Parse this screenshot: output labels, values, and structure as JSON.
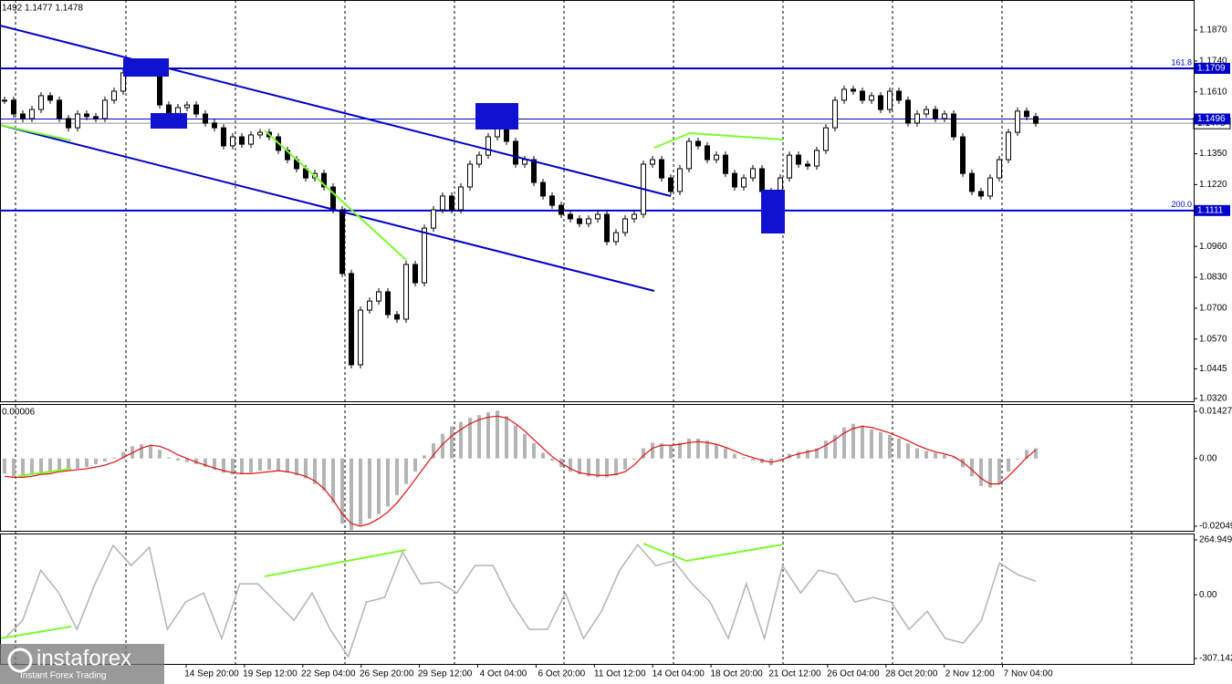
{
  "price": {
    "header": "1492 1.1477 1.1478",
    "ticks": [
      {
        "value": 1.187,
        "label": "1.1870"
      },
      {
        "value": 1.174,
        "label": "1.1740"
      },
      {
        "value": 1.161,
        "label": "1.1610"
      },
      {
        "value": 1.135,
        "label": "1.1350"
      },
      {
        "value": 1.122,
        "label": "1.1220"
      },
      {
        "value": 1.096,
        "label": "1.0960"
      },
      {
        "value": 1.083,
        "label": "1.0830"
      },
      {
        "value": 1.07,
        "label": "1.0700"
      },
      {
        "value": 1.057,
        "label": "1.0570"
      },
      {
        "value": 1.0445,
        "label": "1.0445"
      },
      {
        "value": 1.032,
        "label": "1.0320"
      }
    ],
    "levels": [
      {
        "value": 1.1709,
        "label": "1.1709",
        "fib": "161.8"
      },
      {
        "value": 1.1496,
        "label": "1.1496"
      },
      {
        "value": 1.1111,
        "label": "1.1111",
        "fib": "200.0"
      }
    ],
    "current": {
      "value": 1.1478,
      "label": "1.1478"
    },
    "closes": [
      1.1575,
      1.1517,
      1.1498,
      1.1536,
      1.1594,
      1.1575,
      1.1498,
      1.1459,
      1.1517,
      1.1506,
      1.1498,
      1.1575,
      1.1613,
      1.169,
      1.172,
      1.1697,
      1.1709,
      1.1555,
      1.1517,
      1.1544,
      1.1555,
      1.1517,
      1.1479,
      1.1459,
      1.1383,
      1.1421,
      1.139,
      1.1429,
      1.144,
      1.1421,
      1.1364,
      1.1325,
      1.1287,
      1.1248,
      1.1267,
      1.121,
      1.1114,
      1.0846,
      1.0462,
      1.0692,
      1.073,
      1.0769,
      1.0673,
      1.0654,
      1.0884,
      1.0807,
      1.1037,
      1.1114,
      1.1172,
      1.1114,
      1.121,
      1.1306,
      1.1344,
      1.1421,
      1.1459,
      1.1402,
      1.1306,
      1.1325,
      1.1229,
      1.1172,
      1.1133,
      1.1095,
      1.1076,
      1.1056,
      1.1076,
      1.1095,
      1.098,
      1.1018,
      1.1076,
      1.1095,
      1.1306,
      1.1325,
      1.1248,
      1.1191,
      1.1287,
      1.1402,
      1.1383,
      1.1325,
      1.1344,
      1.1267,
      1.121,
      1.1248,
      1.1287,
      1.1191,
      1.1114,
      1.1248,
      1.1344,
      1.1306,
      1.1298,
      1.1364,
      1.1459,
      1.1575,
      1.1621,
      1.1613,
      1.1575,
      1.1594,
      1.1536,
      1.1613,
      1.1575,
      1.1479,
      1.1517,
      1.1536,
      1.1498,
      1.1517,
      1.1421,
      1.1267,
      1.1191,
      1.1172,
      1.1248,
      1.1325,
      1.144,
      1.1529,
      1.1506,
      1.1478
    ]
  },
  "macd": {
    "header": "0.00006",
    "ticks": [
      0.01427,
      {
        "value": 0,
        "label": "0.00"
      },
      -0.02049
    ],
    "histogram": [
      -0.0046,
      -0.0054,
      -0.0054,
      -0.0051,
      -0.0048,
      -0.0043,
      -0.0037,
      -0.0031,
      -0.0031,
      -0.0026,
      -0.0017,
      -0.0009,
      0.0003,
      0.002,
      0.0037,
      0.0043,
      0.004,
      0.0026,
      0.0003,
      -0.0006,
      -0.0011,
      -0.0017,
      -0.0026,
      -0.0034,
      -0.0043,
      -0.0048,
      -0.0048,
      -0.0043,
      -0.0037,
      -0.0034,
      -0.0037,
      -0.0043,
      -0.0051,
      -0.006,
      -0.0077,
      -0.0097,
      -0.0134,
      -0.0197,
      -0.0217,
      -0.0202,
      -0.0182,
      -0.0168,
      -0.0145,
      -0.0111,
      -0.0077,
      -0.004,
      0.0009,
      0.0046,
      0.0074,
      0.0097,
      0.0111,
      0.0123,
      0.0131,
      0.014,
      0.0145,
      0.0128,
      0.01,
      0.0074,
      0.0046,
      0.0017,
      -0.0006,
      -0.0026,
      -0.004,
      -0.0048,
      -0.0054,
      -0.0057,
      -0.0057,
      -0.0051,
      -0.0034,
      -0.0003,
      0.0031,
      0.0048,
      0.0046,
      0.004,
      0.0048,
      0.006,
      0.006,
      0.0054,
      0.0043,
      0.0031,
      0.0014,
      0.0003,
      -0.0006,
      -0.0014,
      -0.002,
      -0.0003,
      0.0014,
      0.002,
      0.0026,
      0.0031,
      0.0054,
      0.0071,
      0.0094,
      0.0105,
      0.01,
      0.0088,
      0.008,
      0.0071,
      0.006,
      0.0046,
      0.0031,
      0.0023,
      0.0017,
      0.0011,
      0.0003,
      -0.0026,
      -0.0054,
      -0.0083,
      -0.0088,
      -0.0077,
      -0.004,
      -0.0003,
      0.0026,
      0.0031
    ],
    "signal": [
      -0.0054,
      -0.0057,
      -0.0057,
      -0.0054,
      -0.0048,
      -0.0046,
      -0.004,
      -0.0037,
      -0.0034,
      -0.0031,
      -0.0026,
      -0.002,
      -0.0011,
      0.0003,
      0.0017,
      0.0031,
      0.004,
      0.0037,
      0.0026,
      0.0011,
      0,
      -0.0011,
      -0.002,
      -0.0029,
      -0.0037,
      -0.0043,
      -0.0046,
      -0.0046,
      -0.0043,
      -0.004,
      -0.0037,
      -0.004,
      -0.0046,
      -0.0054,
      -0.0068,
      -0.0091,
      -0.0125,
      -0.0168,
      -0.0197,
      -0.0205,
      -0.0197,
      -0.0182,
      -0.0162,
      -0.0134,
      -0.01,
      -0.0063,
      -0.0026,
      0.0011,
      0.0043,
      0.0068,
      0.0088,
      0.0105,
      0.0117,
      0.0125,
      0.0128,
      0.0123,
      0.0105,
      0.0083,
      0.0057,
      0.0031,
      0.0006,
      -0.0014,
      -0.0031,
      -0.0043,
      -0.0048,
      -0.0051,
      -0.0051,
      -0.0048,
      -0.004,
      -0.002,
      0.0009,
      0.0031,
      0.004,
      0.004,
      0.0043,
      0.0048,
      0.0051,
      0.0048,
      0.0043,
      0.0034,
      0.0023,
      0.0011,
      0.0003,
      -0.0006,
      -0.0011,
      -0.0006,
      0.0006,
      0.0014,
      0.002,
      0.0026,
      0.004,
      0.0057,
      0.0077,
      0.0091,
      0.0097,
      0.0094,
      0.0086,
      0.0077,
      0.0066,
      0.0054,
      0.004,
      0.0029,
      0.002,
      0.0014,
      0.0006,
      -0.0011,
      -0.0034,
      -0.006,
      -0.0077,
      -0.0077,
      -0.0054,
      -0.0026,
      0.0003,
      0.0026
    ]
  },
  "cci": {
    "ticks": [
      264.9492,
      {
        "value": 0,
        "label": "0.00"
      },
      -307.142
    ],
    "values": [
      -211,
      -123,
      119,
      9,
      -167,
      53,
      238,
      141,
      229,
      -167,
      -35,
      9,
      -211,
      53,
      53,
      -35,
      -123,
      9,
      -167,
      -299,
      -35,
      -13,
      207,
      53,
      62,
      9,
      141,
      141,
      -35,
      -167,
      -167,
      9,
      -211,
      -79,
      119,
      242,
      141,
      163,
      53,
      -35,
      -211,
      53,
      -211,
      141,
      9,
      119,
      97,
      -35,
      -13,
      -35,
      -167,
      -79,
      -211,
      -233,
      -123,
      154,
      97,
      66
    ]
  },
  "time_axis": [
    "14 Sep 20:00",
    "19 Sep 12:00",
    "22 Sep 04:00",
    "26 Sep 20:00",
    "29 Sep 12:00",
    "4 Oct 04:00",
    "6 Oct 20:00",
    "11 Oct 12:00",
    "14 Oct 04:00",
    "18 Oct 20:00",
    "21 Oct 12:00",
    "26 Oct 04:00",
    "28 Oct 20:00",
    "2 Nov 12:00",
    "7 Nov 04:00"
  ],
  "logo": {
    "name": "instaforex",
    "tagline": "Instant Forex Trading"
  }
}
